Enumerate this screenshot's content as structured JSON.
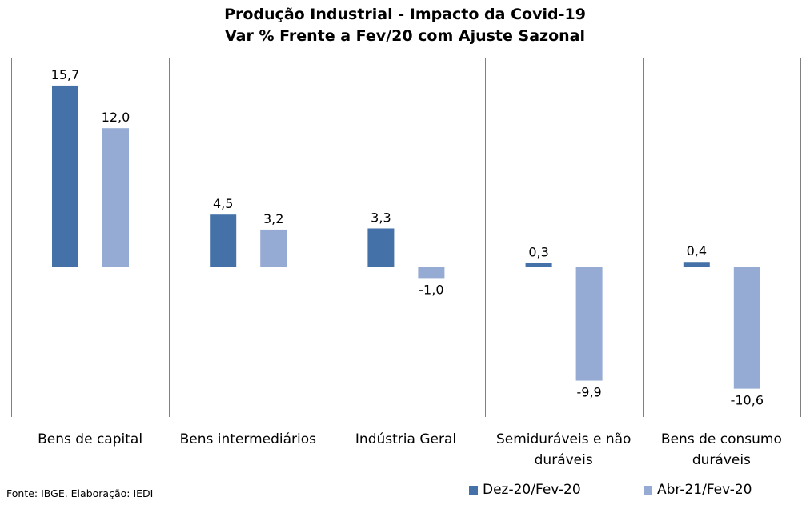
{
  "chart_data": {
    "type": "bar",
    "title": "Produção Industrial - Impacto da Covid-19",
    "subtitle": "Var % Frente a Fev/20 com Ajuste Sazonal",
    "categories": [
      [
        "Bens de capital"
      ],
      [
        "Bens intermediários"
      ],
      [
        "Indústria Geral"
      ],
      [
        "Semiduráveis e não",
        "duráveis"
      ],
      [
        "Bens de consumo",
        "duráveis"
      ]
    ],
    "series": [
      {
        "name": "Dez-20/Fev-20",
        "color": "#4472a8",
        "values": [
          15.7,
          4.5,
          3.3,
          0.3,
          0.4
        ],
        "labels": [
          "15,7",
          "4,5",
          "3,3",
          "0,3",
          "0,4"
        ]
      },
      {
        "name": "Abr-21/Fev-20",
        "color": "#95abd3",
        "values": [
          12.0,
          3.2,
          -1.0,
          -9.9,
          -10.6
        ],
        "labels": [
          "12,0",
          "3,2",
          "-1,0",
          "-9,9",
          "-10,6"
        ]
      }
    ],
    "ylim": [
      -13,
      18
    ],
    "xlabel": "",
    "ylabel": "",
    "legend": "bottom-right",
    "grid": false
  },
  "source": "Fonte: IBGE. Elaboração: IEDI"
}
